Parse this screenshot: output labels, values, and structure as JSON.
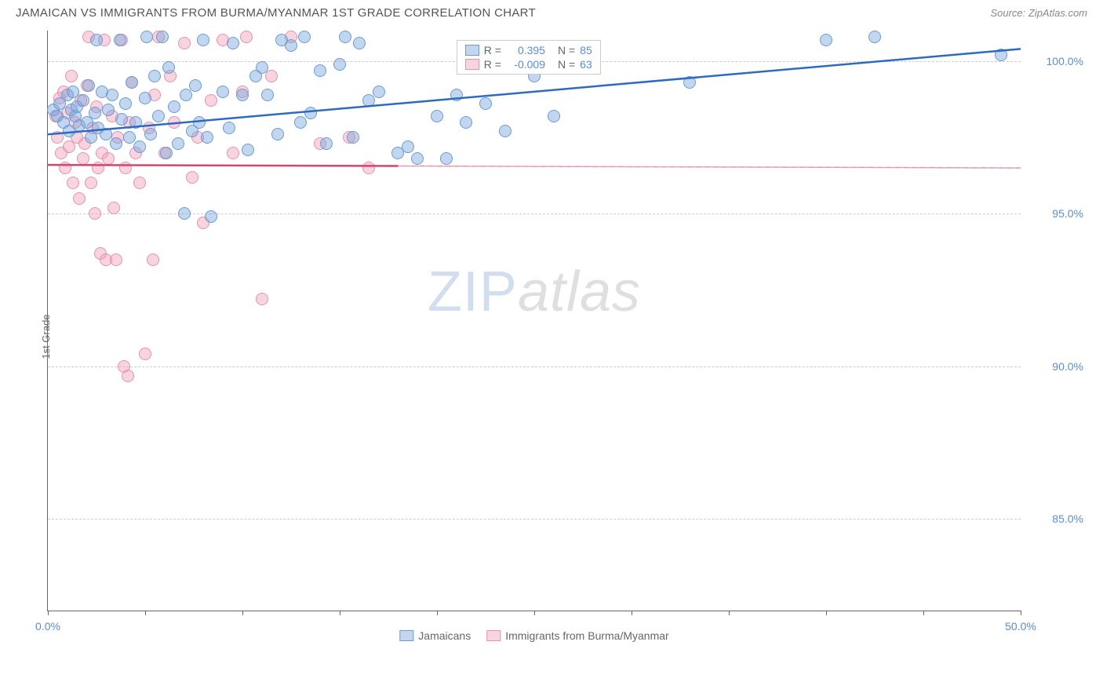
{
  "header": {
    "title": "JAMAICAN VS IMMIGRANTS FROM BURMA/MYANMAR 1ST GRADE CORRELATION CHART",
    "source": "Source: ZipAtlas.com"
  },
  "chart": {
    "type": "scatter",
    "y_axis_label": "1st Grade",
    "background_color": "#ffffff",
    "grid_color": "#cccccc",
    "axis_color": "#666666",
    "tick_label_color": "#5b8dd6",
    "xlim": [
      0,
      50
    ],
    "ylim": [
      82,
      101
    ],
    "x_ticks": [
      0,
      5,
      10,
      15,
      20,
      25,
      30,
      35,
      40,
      45,
      50
    ],
    "x_tick_labels": {
      "0": "0.0%",
      "50": "50.0%"
    },
    "y_gridlines": [
      85,
      90,
      95,
      100
    ],
    "y_tick_labels": {
      "85": "85.0%",
      "90": "90.0%",
      "95": "95.0%",
      "100": "100.0%"
    },
    "watermark": {
      "zip": "ZIP",
      "atlas": "atlas"
    },
    "series": [
      {
        "name": "Jamaicans",
        "fill_color": "rgba(120,165,220,0.45)",
        "stroke_color": "#6a9cd4",
        "line_color": "#2e6bc0",
        "r_value": "0.395",
        "n_value": "85",
        "regression": {
          "x1": 0,
          "y1": 97.6,
          "x2": 50,
          "y2": 100.4,
          "solid_until_x": 50
        },
        "points": [
          [
            0.3,
            98.4
          ],
          [
            0.5,
            98.2
          ],
          [
            0.6,
            98.6
          ],
          [
            0.8,
            98.0
          ],
          [
            1.0,
            98.9
          ],
          [
            1.1,
            97.7
          ],
          [
            1.2,
            98.4
          ],
          [
            1.3,
            99.0
          ],
          [
            1.4,
            98.2
          ],
          [
            1.5,
            98.5
          ],
          [
            1.6,
            97.9
          ],
          [
            1.8,
            98.7
          ],
          [
            2.0,
            98.0
          ],
          [
            2.1,
            99.2
          ],
          [
            2.2,
            97.5
          ],
          [
            2.4,
            98.3
          ],
          [
            2.5,
            100.7
          ],
          [
            2.6,
            97.8
          ],
          [
            2.8,
            99.0
          ],
          [
            3.0,
            97.6
          ],
          [
            3.1,
            98.4
          ],
          [
            3.3,
            98.9
          ],
          [
            3.5,
            97.3
          ],
          [
            3.7,
            100.7
          ],
          [
            3.8,
            98.1
          ],
          [
            4.0,
            98.6
          ],
          [
            4.2,
            97.5
          ],
          [
            4.3,
            99.3
          ],
          [
            4.5,
            98.0
          ],
          [
            4.7,
            97.2
          ],
          [
            5.0,
            98.8
          ],
          [
            5.1,
            100.8
          ],
          [
            5.3,
            97.6
          ],
          [
            5.5,
            99.5
          ],
          [
            5.7,
            98.2
          ],
          [
            5.9,
            100.8
          ],
          [
            6.1,
            97.0
          ],
          [
            6.2,
            99.8
          ],
          [
            6.5,
            98.5
          ],
          [
            6.7,
            97.3
          ],
          [
            7.0,
            95.0
          ],
          [
            7.1,
            98.9
          ],
          [
            7.4,
            97.7
          ],
          [
            7.6,
            99.2
          ],
          [
            7.8,
            98.0
          ],
          [
            8.0,
            100.7
          ],
          [
            8.2,
            97.5
          ],
          [
            8.4,
            94.9
          ],
          [
            9.0,
            99.0
          ],
          [
            9.3,
            97.8
          ],
          [
            9.5,
            100.6
          ],
          [
            10.0,
            98.9
          ],
          [
            10.3,
            97.1
          ],
          [
            10.7,
            99.5
          ],
          [
            11.0,
            99.8
          ],
          [
            11.3,
            98.9
          ],
          [
            11.8,
            97.6
          ],
          [
            12.0,
            100.7
          ],
          [
            12.5,
            100.5
          ],
          [
            13.0,
            98.0
          ],
          [
            13.2,
            100.8
          ],
          [
            13.5,
            98.3
          ],
          [
            14.0,
            99.7
          ],
          [
            14.3,
            97.3
          ],
          [
            15.0,
            99.9
          ],
          [
            15.3,
            100.8
          ],
          [
            15.7,
            97.5
          ],
          [
            16.0,
            100.6
          ],
          [
            16.5,
            98.7
          ],
          [
            17.0,
            99.0
          ],
          [
            18.0,
            97.0
          ],
          [
            18.5,
            97.2
          ],
          [
            19.0,
            96.8
          ],
          [
            20.0,
            98.2
          ],
          [
            20.5,
            96.8
          ],
          [
            21.0,
            98.9
          ],
          [
            21.5,
            98.0
          ],
          [
            22.5,
            98.6
          ],
          [
            23.5,
            97.7
          ],
          [
            25.0,
            99.5
          ],
          [
            26.0,
            98.2
          ],
          [
            33.0,
            99.3
          ],
          [
            40.0,
            100.7
          ],
          [
            42.5,
            100.8
          ],
          [
            49.0,
            100.2
          ]
        ]
      },
      {
        "name": "Immigrants from Burma/Myanmar",
        "fill_color": "rgba(240,160,185,0.45)",
        "stroke_color": "#e890b0",
        "line_color": "#d6456e",
        "r_value": "-0.009",
        "n_value": "63",
        "regression": {
          "x1": 0,
          "y1": 96.6,
          "x2": 50,
          "y2": 96.5,
          "solid_until_x": 18
        },
        "points": [
          [
            0.4,
            98.2
          ],
          [
            0.5,
            97.5
          ],
          [
            0.6,
            98.8
          ],
          [
            0.7,
            97.0
          ],
          [
            0.8,
            99.0
          ],
          [
            0.9,
            96.5
          ],
          [
            1.0,
            98.3
          ],
          [
            1.1,
            97.2
          ],
          [
            1.2,
            99.5
          ],
          [
            1.3,
            96.0
          ],
          [
            1.4,
            98.0
          ],
          [
            1.5,
            97.5
          ],
          [
            1.6,
            95.5
          ],
          [
            1.7,
            98.7
          ],
          [
            1.8,
            96.8
          ],
          [
            1.9,
            97.3
          ],
          [
            2.0,
            99.2
          ],
          [
            2.1,
            100.8
          ],
          [
            2.2,
            96.0
          ],
          [
            2.3,
            97.8
          ],
          [
            2.4,
            95.0
          ],
          [
            2.5,
            98.5
          ],
          [
            2.6,
            96.5
          ],
          [
            2.7,
            93.7
          ],
          [
            2.8,
            97.0
          ],
          [
            2.9,
            100.7
          ],
          [
            3.0,
            93.5
          ],
          [
            3.1,
            96.8
          ],
          [
            3.3,
            98.2
          ],
          [
            3.4,
            95.2
          ],
          [
            3.5,
            93.5
          ],
          [
            3.6,
            97.5
          ],
          [
            3.8,
            100.7
          ],
          [
            3.9,
            90.0
          ],
          [
            4.0,
            96.5
          ],
          [
            4.1,
            89.7
          ],
          [
            4.2,
            98.0
          ],
          [
            4.3,
            99.3
          ],
          [
            4.5,
            97.0
          ],
          [
            4.7,
            96.0
          ],
          [
            5.0,
            90.4
          ],
          [
            5.2,
            97.8
          ],
          [
            5.4,
            93.5
          ],
          [
            5.5,
            98.9
          ],
          [
            5.7,
            100.8
          ],
          [
            6.0,
            97.0
          ],
          [
            6.3,
            99.5
          ],
          [
            6.5,
            98.0
          ],
          [
            7.0,
            100.6
          ],
          [
            7.4,
            96.2
          ],
          [
            7.7,
            97.5
          ],
          [
            8.0,
            94.7
          ],
          [
            8.4,
            98.7
          ],
          [
            9.0,
            100.7
          ],
          [
            9.5,
            97.0
          ],
          [
            10.0,
            99.0
          ],
          [
            10.2,
            100.8
          ],
          [
            11.0,
            92.2
          ],
          [
            11.5,
            99.5
          ],
          [
            12.5,
            100.8
          ],
          [
            14.0,
            97.3
          ],
          [
            15.5,
            97.5
          ],
          [
            16.5,
            96.5
          ]
        ]
      }
    ],
    "legend_labels": {
      "r_prefix": "R =",
      "n_prefix": "N ="
    },
    "bottom_legend": [
      {
        "label": "Jamaicans",
        "fill": "rgba(120,165,220,0.45)",
        "stroke": "#6a9cd4"
      },
      {
        "label": "Immigrants from Burma/Myanmar",
        "fill": "rgba(240,160,185,0.45)",
        "stroke": "#e890b0"
      }
    ]
  }
}
